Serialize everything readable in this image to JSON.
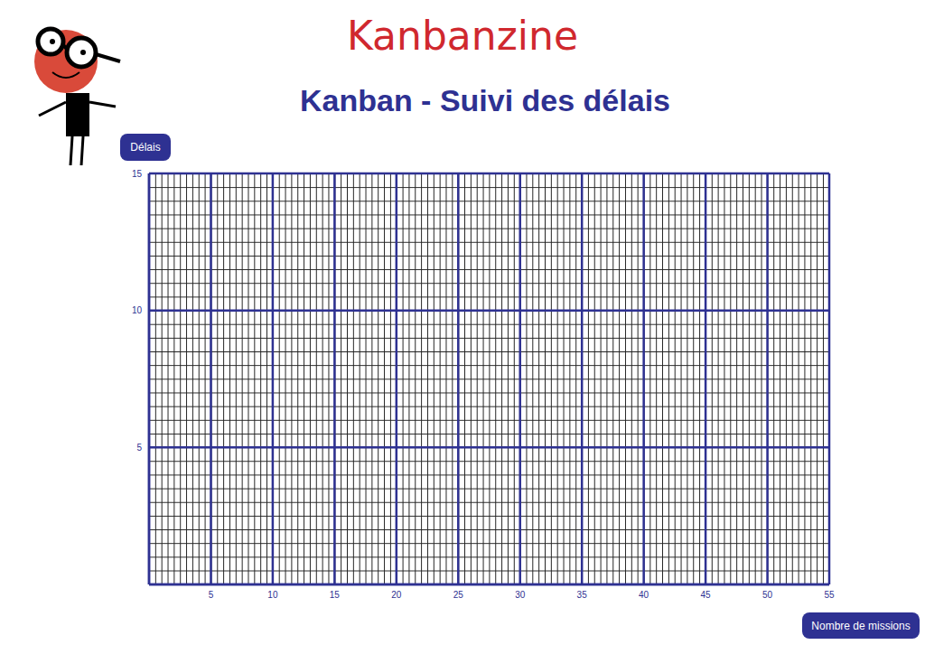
{
  "chart_data": {
    "type": "line",
    "title": "Kanbanzine",
    "subtitle": "Kanban - Suivi des délais",
    "x_label": "Nombre de missions",
    "y_label": "Délais",
    "series": [],
    "xlim": [
      0,
      55
    ],
    "xticks": [
      5,
      10,
      15,
      20,
      25,
      30,
      35,
      40,
      45,
      50,
      55
    ],
    "ylim": [
      0,
      15
    ],
    "yticks": [
      5,
      10,
      15
    ],
    "grid": true
  }
}
